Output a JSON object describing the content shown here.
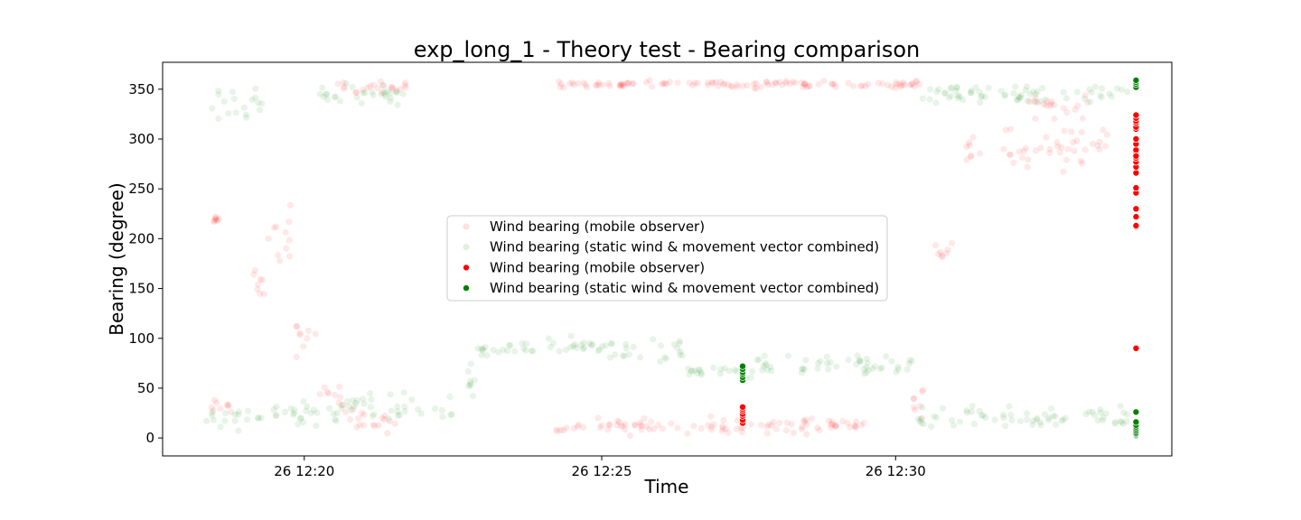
{
  "chart_data": {
    "type": "scatter",
    "title": "exp_long_1 - Theory test - Bearing comparison",
    "xlabel": "Time",
    "ylabel": "Bearing (degree)",
    "x_unit": "minutes",
    "xlim": [
      12.293,
      12.578
    ],
    "ylim": [
      -18,
      377
    ],
    "x_ticks": [
      {
        "value": 12.333,
        "label": "26 12:20"
      },
      {
        "value": 12.417,
        "label": "26 12:25"
      },
      {
        "value": 12.5,
        "label": "26 12:30"
      }
    ],
    "y_ticks": [
      0,
      50,
      100,
      150,
      200,
      250,
      300,
      350
    ],
    "legend_position": "center",
    "grid": false,
    "colors": {
      "mobile": "#ff0000",
      "combined": "#008000"
    },
    "series": [
      {
        "name": "Wind bearing (mobile observer)",
        "color": "#ff0000",
        "style": "faint",
        "segments": [
          {
            "x0": 12.306,
            "x1": 12.314,
            "center": 30,
            "spread": 12
          },
          {
            "x0": 12.307,
            "x1": 12.309,
            "center": 220,
            "spread": 6
          },
          {
            "x0": 12.318,
            "x1": 12.322,
            "center": 150,
            "spread": 35
          },
          {
            "x0": 12.322,
            "x1": 12.332,
            "center": 200,
            "spread": 45
          },
          {
            "x0": 12.33,
            "x1": 12.338,
            "center": 100,
            "spread": 25
          },
          {
            "x0": 12.337,
            "x1": 12.347,
            "center": 40,
            "spread": 25
          },
          {
            "x0": 12.345,
            "x1": 12.36,
            "center": 15,
            "spread": 15
          },
          {
            "x0": 12.342,
            "x1": 12.362,
            "center": 352,
            "spread": 8
          },
          {
            "x0": 12.404,
            "x1": 12.492,
            "center": 12,
            "spread": 12
          },
          {
            "x0": 12.404,
            "x1": 12.509,
            "center": 355,
            "spread": 5
          },
          {
            "x0": 12.505,
            "x1": 12.508,
            "center": 40,
            "spread": 25
          },
          {
            "x0": 12.51,
            "x1": 12.517,
            "center": 190,
            "spread": 15
          },
          {
            "x0": 12.516,
            "x1": 12.56,
            "center": 290,
            "spread": 30
          },
          {
            "x0": 12.537,
            "x1": 12.555,
            "center": 335,
            "spread": 20
          }
        ]
      },
      {
        "name": "Wind bearing (static wind & movement vector combined)",
        "color": "#008000",
        "style": "faint",
        "segments": [
          {
            "x0": 12.306,
            "x1": 12.322,
            "center": 335,
            "spread": 20
          },
          {
            "x0": 12.305,
            "x1": 12.318,
            "center": 20,
            "spread": 18
          },
          {
            "x0": 12.318,
            "x1": 12.343,
            "center": 25,
            "spread": 18
          },
          {
            "x0": 12.343,
            "x1": 12.375,
            "center": 30,
            "spread": 20
          },
          {
            "x0": 12.335,
            "x1": 12.362,
            "center": 345,
            "spread": 15
          },
          {
            "x0": 12.378,
            "x1": 12.383,
            "center": 60,
            "spread": 25
          },
          {
            "x0": 12.382,
            "x1": 12.4,
            "center": 88,
            "spread": 10
          },
          {
            "x0": 12.4,
            "x1": 12.418,
            "center": 92,
            "spread": 12
          },
          {
            "x0": 12.418,
            "x1": 12.44,
            "center": 88,
            "spread": 18
          },
          {
            "x0": 12.44,
            "x1": 12.46,
            "center": 65,
            "spread": 10
          },
          {
            "x0": 12.46,
            "x1": 12.497,
            "center": 72,
            "spread": 14
          },
          {
            "x0": 12.497,
            "x1": 12.505,
            "center": 72,
            "spread": 18
          },
          {
            "x0": 12.506,
            "x1": 12.567,
            "center": 20,
            "spread": 18
          },
          {
            "x0": 12.506,
            "x1": 12.567,
            "center": 345,
            "spread": 14
          }
        ]
      },
      {
        "name": "Wind bearing (mobile observer)",
        "color": "#ff0000",
        "style": "solid",
        "x": [
          12.4568,
          12.4568,
          12.4568,
          12.4568,
          12.4568,
          12.4568,
          12.4568,
          12.5679,
          12.5679,
          12.5679,
          12.5679,
          12.5679,
          12.5679,
          12.5679,
          12.5679,
          12.5679,
          12.5679,
          12.5679,
          12.5679,
          12.5679,
          12.5679,
          12.5679,
          12.5679,
          12.5679,
          12.5679,
          12.5679,
          12.5679,
          12.5679,
          12.5679
        ],
        "y": [
          15,
          18,
          22,
          24,
          27,
          29,
          31,
          90,
          212,
          222,
          230,
          246,
          251,
          266,
          272,
          277,
          281,
          287,
          289,
          295,
          300,
          310,
          312,
          316,
          318,
          321,
          324,
          213,
          283
        ]
      },
      {
        "name": "Wind bearing (static wind & movement vector combined)",
        "color": "#008000",
        "style": "solid",
        "x": [
          12.4568,
          12.4568,
          12.4568,
          12.4568,
          12.4568,
          12.4568,
          12.5679,
          12.5679,
          12.5679,
          12.5679,
          12.5679,
          12.5679,
          12.5679,
          12.5679,
          12.5679,
          12.5679,
          12.5679,
          12.5679,
          12.5679,
          12.5679
        ],
        "y": [
          58,
          61,
          64,
          66,
          69,
          72,
          2,
          3,
          4,
          5,
          7,
          9,
          11,
          13,
          16,
          26,
          352,
          355,
          357,
          359
        ]
      }
    ]
  }
}
